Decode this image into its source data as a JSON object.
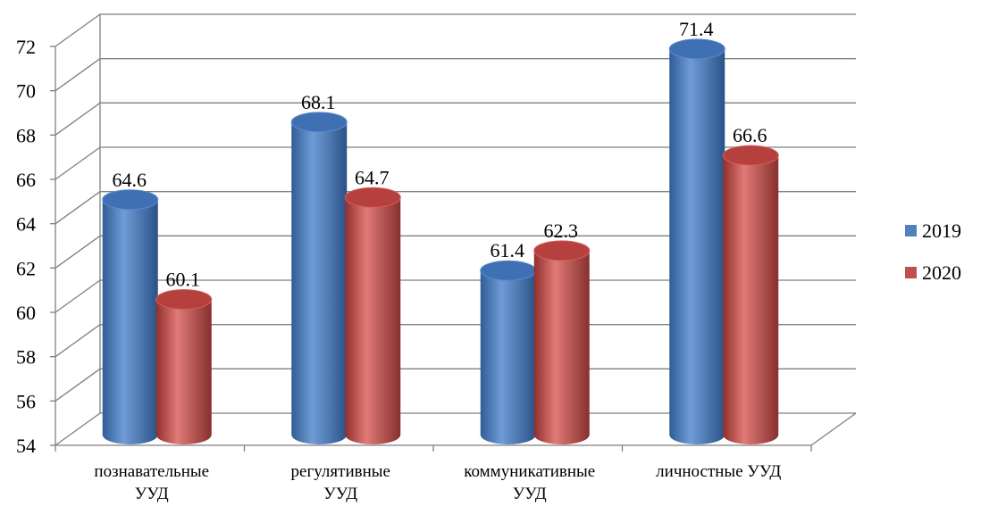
{
  "chart_data": {
    "type": "bar",
    "categories": [
      [
        "познавательные",
        "УУД"
      ],
      [
        "регулятивные",
        "УУД"
      ],
      [
        "коммуникативные",
        "УУД"
      ],
      [
        "личностные УУД"
      ]
    ],
    "series": [
      {
        "name": "2019",
        "values": [
          64.6,
          68.1,
          61.4,
          71.4
        ],
        "color": "#4F81BD"
      },
      {
        "name": "2020",
        "values": [
          60.1,
          64.7,
          62.3,
          66.6
        ],
        "color": "#C0504D"
      }
    ],
    "y_ticks": [
      54,
      56,
      58,
      60,
      62,
      64,
      66,
      68,
      70,
      72
    ],
    "ylim": [
      54,
      72
    ],
    "grid": true,
    "legend": "right",
    "style": "3d-cylinder"
  }
}
